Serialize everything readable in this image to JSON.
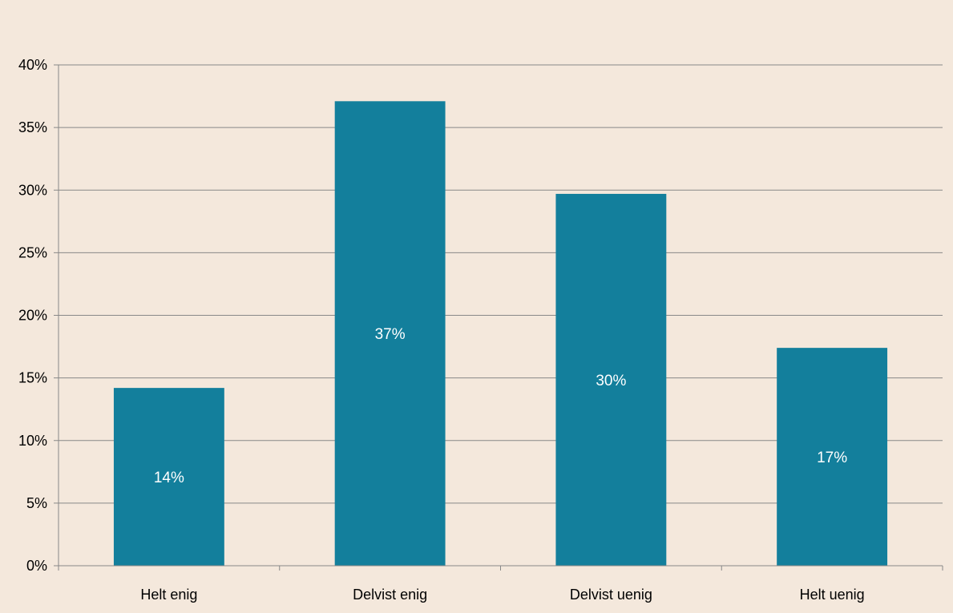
{
  "chart_data": {
    "type": "bar",
    "title": "",
    "xlabel": "",
    "ylabel": "",
    "categories": [
      "Helt enig",
      "Delvist enig",
      "Delvist uenig",
      "Helt uenig"
    ],
    "values": [
      14.2,
      37.1,
      29.7,
      17.4
    ],
    "data_labels": [
      "14%",
      "37%",
      "30%",
      "17%"
    ],
    "ylim": [
      0,
      40
    ],
    "yticks": [
      0,
      5,
      10,
      15,
      20,
      25,
      30,
      35,
      40
    ],
    "ytick_labels": [
      "0%",
      "5%",
      "10%",
      "15%",
      "20%",
      "25%",
      "30%",
      "35%",
      "40%"
    ],
    "grid": true,
    "legend": "none",
    "colors": {
      "background": "#f4e8dc",
      "bar": "#137f9c",
      "grid": "#888888",
      "axis": "#888888",
      "text": "#000000",
      "bar_label": "#ffffff"
    }
  }
}
